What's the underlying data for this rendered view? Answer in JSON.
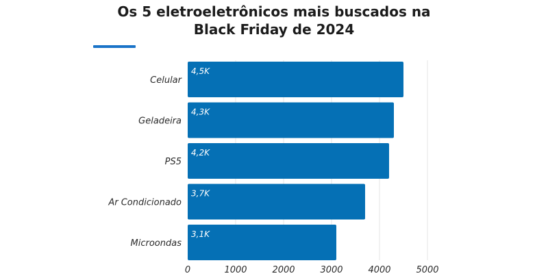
{
  "chart_data": {
    "type": "bar",
    "orientation": "horizontal",
    "title_lines": [
      "Os 5 eletroeletrônicos mais buscados na",
      "Black Friday de 2024"
    ],
    "categories": [
      "Celular",
      "Geladeira",
      "PS5",
      "Ar Condicionado",
      "Microondas"
    ],
    "values": [
      4500,
      4300,
      4200,
      3700,
      3100
    ],
    "data_labels": [
      "4,5K",
      "4,3K",
      "4,2K",
      "3,7K",
      "3,1K"
    ],
    "xticks": [
      0,
      1000,
      2000,
      3000,
      4000,
      5000
    ],
    "xlim": [
      0,
      5000
    ],
    "xlabel": "",
    "ylabel": "",
    "grid": "vertical",
    "legend": "none",
    "colors": {
      "bar": "#0570b5",
      "accent": "#1a73c8",
      "grid": "#e4e4e4",
      "text": "#1b1b1b"
    }
  }
}
